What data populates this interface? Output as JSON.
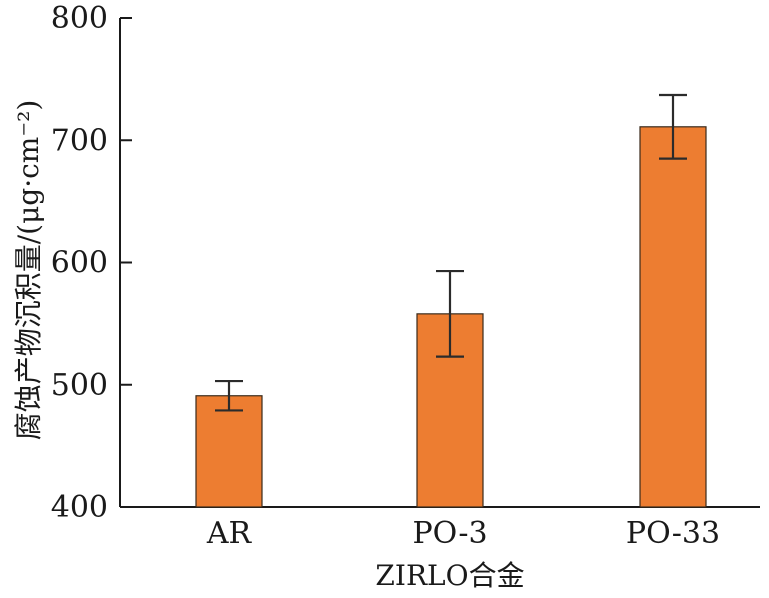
{
  "chart_data": {
    "type": "bar",
    "categories": [
      "AR",
      "PO-3",
      "PO-33"
    ],
    "values": [
      491,
      558,
      711
    ],
    "errors": [
      12,
      35,
      26
    ],
    "xlabel": "ZIRLO合金",
    "ylabel": "腐蚀产物沉积量/(μg·cm⁻²)",
    "ylim": [
      400,
      800
    ],
    "yticks": [
      400,
      500,
      600,
      700,
      800
    ],
    "grid": false,
    "legend": "none",
    "bar_color": "#ED7D31",
    "bar_edge_color": "#3a2a1a",
    "axis_color": "#1a1a1a"
  }
}
